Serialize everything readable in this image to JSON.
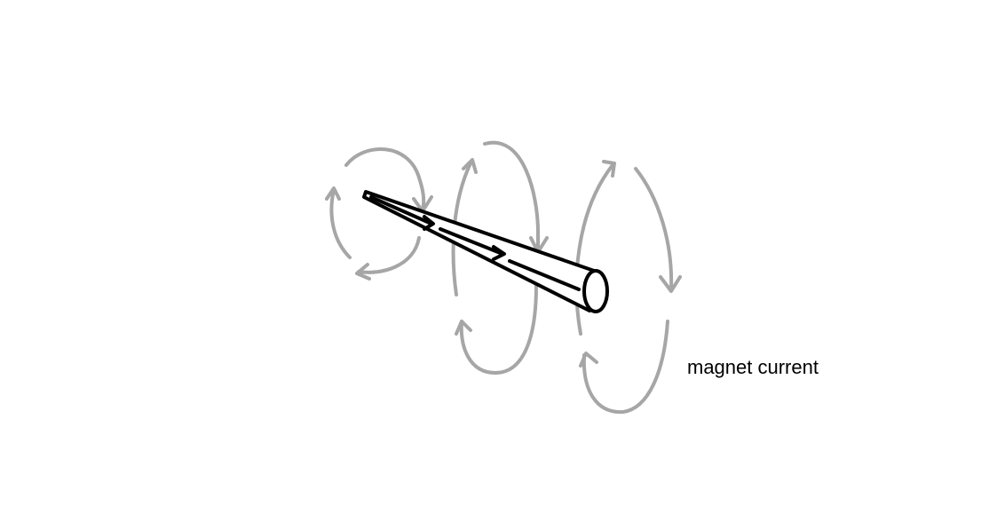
{
  "diagram": {
    "label": "magnet current",
    "colors": {
      "field_loops": "#a6a6a6",
      "wire": "#000000",
      "background": "#ffffff"
    }
  }
}
